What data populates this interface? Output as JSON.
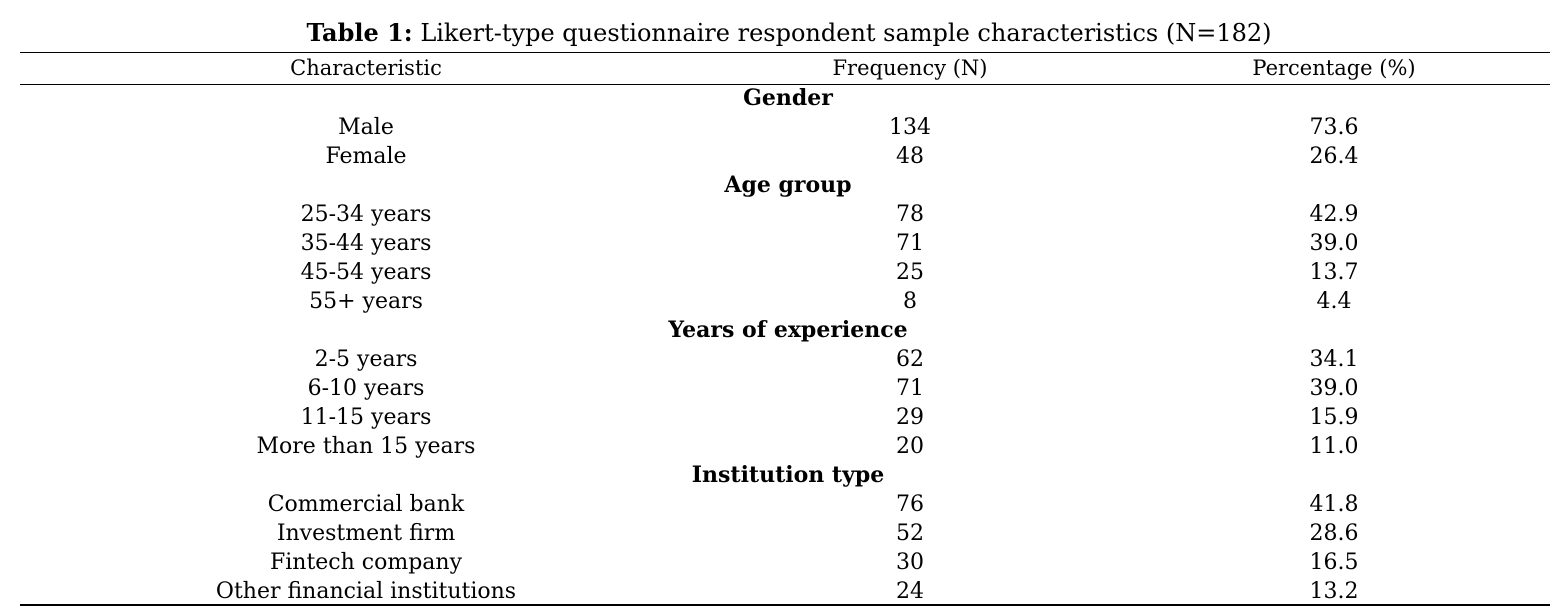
{
  "table": {
    "title_label": "Table 1:",
    "title_text": "Likert-type questionnaire respondent sample characteristics (N=182)",
    "headers": {
      "characteristic": "Characteristic",
      "frequency": "Frequency (N)",
      "percentage": "Percentage (%)"
    },
    "groups": [
      {
        "name": "Gender",
        "rows": [
          {
            "label": "Male",
            "frequency": "134",
            "percentage": "73.6"
          },
          {
            "label": "Female",
            "frequency": "48",
            "percentage": "26.4"
          }
        ]
      },
      {
        "name": "Age group",
        "rows": [
          {
            "label": "25-34 years",
            "frequency": "78",
            "percentage": "42.9"
          },
          {
            "label": "35-44 years",
            "frequency": "71",
            "percentage": "39.0"
          },
          {
            "label": "45-54 years",
            "frequency": "25",
            "percentage": "13.7"
          },
          {
            "label": "55+ years",
            "frequency": "8",
            "percentage": "4.4"
          }
        ]
      },
      {
        "name": "Years of experience",
        "rows": [
          {
            "label": "2-5 years",
            "frequency": "62",
            "percentage": "34.1"
          },
          {
            "label": "6-10 years",
            "frequency": "71",
            "percentage": "39.0"
          },
          {
            "label": "11-15 years",
            "frequency": "29",
            "percentage": "15.9"
          },
          {
            "label": "More than 15 years",
            "frequency": "20",
            "percentage": "11.0"
          }
        ]
      },
      {
        "name": "Institution type",
        "rows": [
          {
            "label": "Commercial bank",
            "frequency": "76",
            "percentage": "41.8"
          },
          {
            "label": "Investment firm",
            "frequency": "52",
            "percentage": "28.6"
          },
          {
            "label": "Fintech company",
            "frequency": "30",
            "percentage": "16.5"
          },
          {
            "label": "Other financial institutions",
            "frequency": "24",
            "percentage": "13.2"
          }
        ]
      }
    ]
  }
}
